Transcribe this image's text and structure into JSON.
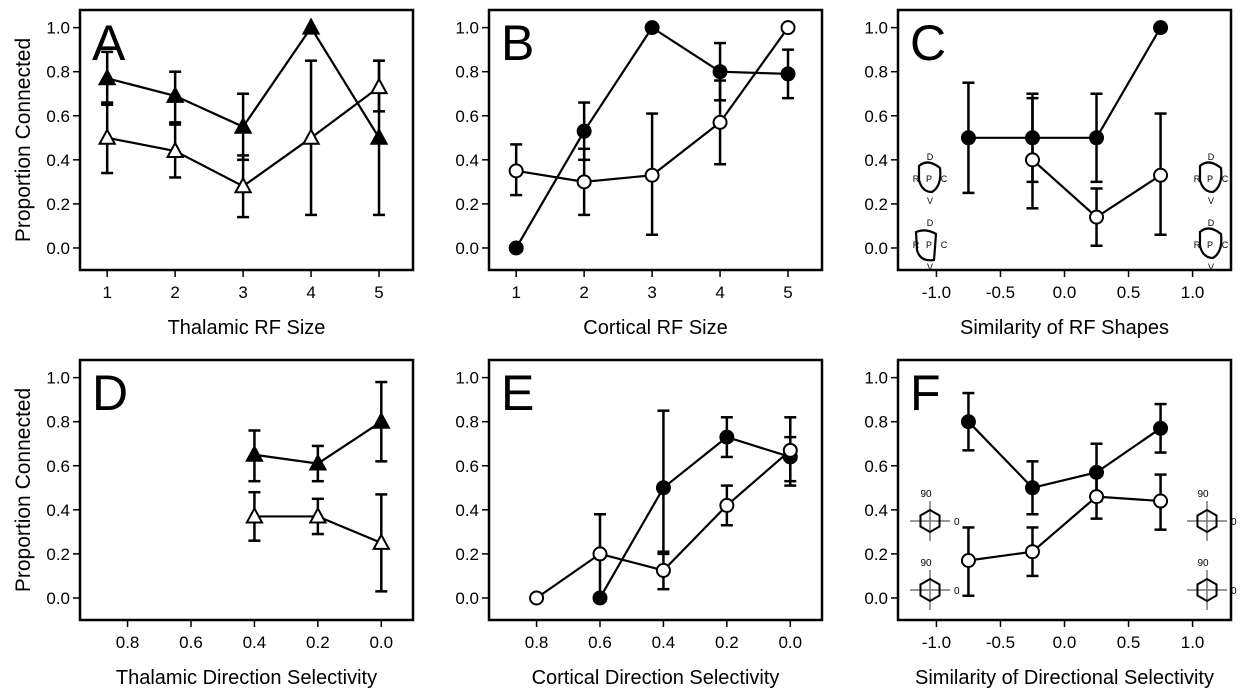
{
  "figure": {
    "ylabel": "Proportion Connected"
  },
  "chart_data": [
    {
      "panel": "A",
      "type": "line",
      "xlabel": "Thalamic RF Size",
      "xlim": [
        0.6,
        5.5
      ],
      "ylim": [
        -0.1,
        1.08
      ],
      "xticks": [
        1,
        2,
        3,
        4,
        5
      ],
      "xtick_labels": [
        "1",
        "2",
        "3",
        "4",
        "5"
      ],
      "yticks": [
        0,
        0.2,
        0.4,
        0.6,
        0.8,
        1.0
      ],
      "ytick_labels": [
        "0.0",
        "0.2",
        "0.4",
        "0.6",
        "0.8",
        "1.0"
      ],
      "grid": false,
      "legend": "none",
      "series": [
        {
          "marker": "triangle-filled",
          "x": [
            1,
            2,
            3,
            4,
            5
          ],
          "y": [
            0.77,
            0.69,
            0.55,
            1.0,
            0.5
          ],
          "err_low": [
            0.65,
            0.57,
            0.4,
            1.0,
            0.15
          ],
          "err_high": [
            0.89,
            0.8,
            0.7,
            1.0,
            0.85
          ]
        },
        {
          "marker": "triangle-open",
          "x": [
            1,
            2,
            3,
            4,
            5
          ],
          "y": [
            0.5,
            0.44,
            0.28,
            0.5,
            0.73
          ],
          "err_low": [
            0.34,
            0.32,
            0.14,
            0.15,
            0.62
          ],
          "err_high": [
            0.66,
            0.56,
            0.42,
            0.85,
            0.85
          ]
        }
      ]
    },
    {
      "panel": "B",
      "type": "line",
      "xlabel": "Cortical RF Size",
      "xlim": [
        0.6,
        5.5
      ],
      "ylim": [
        -0.1,
        1.08
      ],
      "xticks": [
        1,
        2,
        3,
        4,
        5
      ],
      "xtick_labels": [
        "1",
        "2",
        "3",
        "4",
        "5"
      ],
      "yticks": [
        0,
        0.2,
        0.4,
        0.6,
        0.8,
        1.0
      ],
      "ytick_labels": [
        "0.0",
        "0.2",
        "0.4",
        "0.6",
        "0.8",
        "1.0"
      ],
      "grid": false,
      "legend": "none",
      "series": [
        {
          "marker": "circle-filled",
          "x": [
            1,
            2,
            3,
            4,
            5
          ],
          "y": [
            0.0,
            0.53,
            1.0,
            0.8,
            0.79
          ],
          "err_low": [
            0.0,
            0.4,
            1.0,
            0.67,
            0.68
          ],
          "err_high": [
            0.0,
            0.66,
            1.0,
            0.93,
            0.9
          ]
        },
        {
          "marker": "circle-open",
          "x": [
            1,
            2,
            3,
            4,
            5
          ],
          "y": [
            0.35,
            0.3,
            0.33,
            0.57,
            1.0
          ],
          "err_low": [
            0.24,
            0.15,
            0.06,
            0.38,
            1.0
          ],
          "err_high": [
            0.47,
            0.45,
            0.61,
            0.76,
            1.0
          ]
        }
      ]
    },
    {
      "panel": "C",
      "type": "line",
      "xlabel": "Similarity of RF Shapes",
      "xlim": [
        -1.3,
        1.3
      ],
      "ylim": [
        -0.1,
        1.08
      ],
      "xticks": [
        -1.0,
        -0.5,
        0.0,
        0.5,
        1.0
      ],
      "xtick_labels": [
        "-1.0",
        "-0.5",
        "0.0",
        "0.5",
        "1.0"
      ],
      "yticks": [
        0,
        0.2,
        0.4,
        0.6,
        0.8,
        1.0
      ],
      "ytick_labels": [
        "0.0",
        "0.2",
        "0.4",
        "0.6",
        "0.8",
        "1.0"
      ],
      "grid": false,
      "legend": "none",
      "series": [
        {
          "marker": "circle-filled",
          "x": [
            -0.75,
            -0.25,
            0.25,
            0.75
          ],
          "y": [
            0.5,
            0.5,
            0.5,
            1.0
          ],
          "err_low": [
            0.25,
            0.3,
            0.3,
            1.0
          ],
          "err_high": [
            0.75,
            0.7,
            0.7,
            1.0
          ]
        },
        {
          "marker": "circle-open",
          "x": [
            -0.25,
            0.25,
            0.75
          ],
          "y": [
            0.4,
            0.14,
            0.33
          ],
          "err_low": [
            0.18,
            0.01,
            0.06
          ],
          "err_high": [
            0.68,
            0.27,
            0.61
          ]
        }
      ],
      "annotations": [
        "D",
        "R",
        "P",
        "C",
        "V"
      ]
    },
    {
      "panel": "D",
      "type": "line",
      "xlabel": "Thalamic Direction Selectivity",
      "xlim": [
        0.95,
        -0.1
      ],
      "ylim": [
        -0.1,
        1.08
      ],
      "xticks": [
        0.8,
        0.6,
        0.4,
        0.2,
        0.0
      ],
      "xtick_labels": [
        "0.8",
        "0.6",
        "0.4",
        "0.2",
        "0.0"
      ],
      "yticks": [
        0,
        0.2,
        0.4,
        0.6,
        0.8,
        1.0
      ],
      "ytick_labels": [
        "0.0",
        "0.2",
        "0.4",
        "0.6",
        "0.8",
        "1.0"
      ],
      "grid": false,
      "legend": "none",
      "series": [
        {
          "marker": "triangle-filled",
          "x": [
            0.4,
            0.2,
            0.0
          ],
          "y": [
            0.65,
            0.61,
            0.8
          ],
          "err_low": [
            0.53,
            0.53,
            0.62
          ],
          "err_high": [
            0.76,
            0.69,
            0.98
          ]
        },
        {
          "marker": "triangle-open",
          "x": [
            0.4,
            0.2,
            0.0
          ],
          "y": [
            0.37,
            0.37,
            0.25
          ],
          "err_low": [
            0.26,
            0.29,
            0.03
          ],
          "err_high": [
            0.48,
            0.45,
            0.47
          ]
        }
      ]
    },
    {
      "panel": "E",
      "type": "line",
      "xlabel": "Cortical Direction Selectivity",
      "xlim": [
        0.95,
        -0.1
      ],
      "ylim": [
        -0.1,
        1.08
      ],
      "xticks": [
        0.8,
        0.6,
        0.4,
        0.2,
        0.0
      ],
      "xtick_labels": [
        "0.8",
        "0.6",
        "0.4",
        "0.2",
        "0.0"
      ],
      "yticks": [
        0,
        0.2,
        0.4,
        0.6,
        0.8,
        1.0
      ],
      "ytick_labels": [
        "0.0",
        "0.2",
        "0.4",
        "0.6",
        "0.8",
        "1.0"
      ],
      "grid": false,
      "legend": "none",
      "series": [
        {
          "marker": "circle-filled",
          "x": [
            0.6,
            0.4,
            0.2,
            0.0
          ],
          "y": [
            0.0,
            0.5,
            0.73,
            0.64
          ],
          "err_low": [
            0.0,
            0.2,
            0.64,
            0.51
          ],
          "err_high": [
            0.0,
            0.85,
            0.82,
            0.73
          ]
        },
        {
          "marker": "circle-open",
          "x": [
            0.8,
            0.6,
            0.4,
            0.2,
            0.0
          ],
          "y": [
            0.0,
            0.2,
            0.125,
            0.42,
            0.67
          ],
          "err_low": [
            0.0,
            0.0,
            0.04,
            0.33,
            0.53
          ],
          "err_high": [
            0.0,
            0.38,
            0.21,
            0.51,
            0.82
          ]
        }
      ]
    },
    {
      "panel": "F",
      "type": "line",
      "xlabel": "Similarity of Directional Selectivity",
      "xlim": [
        -1.3,
        1.3
      ],
      "ylim": [
        -0.1,
        1.08
      ],
      "xticks": [
        -1.0,
        -0.5,
        0.0,
        0.5,
        1.0
      ],
      "xtick_labels": [
        "-1.0",
        "-0.5",
        "0.0",
        "0.5",
        "1.0"
      ],
      "yticks": [
        0,
        0.2,
        0.4,
        0.6,
        0.8,
        1.0
      ],
      "ytick_labels": [
        "0.0",
        "0.2",
        "0.4",
        "0.6",
        "0.8",
        "1.0"
      ],
      "grid": false,
      "legend": "none",
      "series": [
        {
          "marker": "circle-filled",
          "x": [
            -0.75,
            -0.25,
            0.25,
            0.75
          ],
          "y": [
            0.8,
            0.5,
            0.57,
            0.77
          ],
          "err_low": [
            0.67,
            0.38,
            0.44,
            0.66
          ],
          "err_high": [
            0.93,
            0.62,
            0.7,
            0.88
          ]
        },
        {
          "marker": "circle-open",
          "x": [
            -0.75,
            -0.25,
            0.25,
            0.75
          ],
          "y": [
            0.17,
            0.21,
            0.46,
            0.44
          ],
          "err_low": [
            0.01,
            0.1,
            0.36,
            0.31
          ],
          "err_high": [
            0.32,
            0.32,
            0.56,
            0.56
          ]
        }
      ],
      "annotations": [
        "90",
        "0"
      ]
    }
  ]
}
